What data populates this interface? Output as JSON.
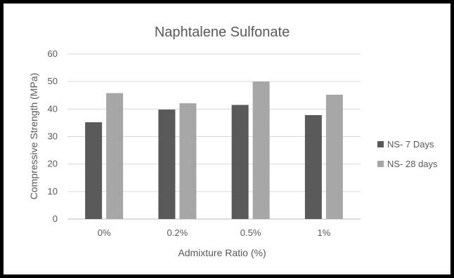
{
  "chart_data": {
    "type": "bar",
    "title": "Naphtalene Sulfonate",
    "xlabel": "Admixture Ratio (%)",
    "ylabel": "Compressive Strength (MPa)",
    "categories": [
      "0%",
      "0.2%",
      "0.5%",
      "1%"
    ],
    "series": [
      {
        "name": "NS- 7 Days",
        "values": [
          35.2,
          39.8,
          41.5,
          37.8
        ],
        "color": "#595959"
      },
      {
        "name": "NS- 28 days",
        "values": [
          45.8,
          42.1,
          50.0,
          45.2
        ],
        "color": "#a6a6a6"
      }
    ],
    "ylim": [
      0,
      60
    ],
    "yticks": [
      0,
      10,
      20,
      30,
      40,
      50,
      60
    ],
    "grid": true,
    "legend": "right"
  }
}
